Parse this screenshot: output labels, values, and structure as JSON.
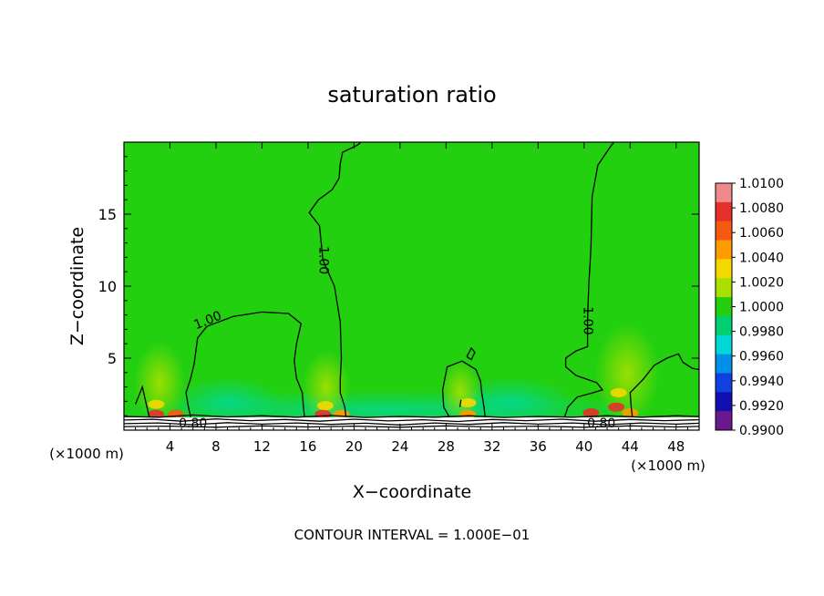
{
  "chart_data": {
    "type": "heatmap",
    "title": "saturation ratio",
    "xlabel": "X−coordinate",
    "ylabel": "Z−coordinate",
    "x_unit_left": "(×1000 m)",
    "x_unit_right": "(×1000 m)",
    "footer": "CONTOUR INTERVAL = 1.000E−01",
    "xlim": [
      0,
      50
    ],
    "ylim": [
      0,
      20
    ],
    "x_ticks": [
      "4",
      "8",
      "12",
      "16",
      "20",
      "24",
      "28",
      "32",
      "36",
      "40",
      "44",
      "48"
    ],
    "x_tick_values": [
      4,
      8,
      12,
      16,
      20,
      24,
      28,
      32,
      36,
      40,
      44,
      48
    ],
    "y_ticks": [
      "5",
      "10",
      "15"
    ],
    "y_tick_values": [
      5,
      10,
      15
    ],
    "colorbar": {
      "labels": [
        "1.0100",
        "1.0080",
        "1.0060",
        "1.0040",
        "1.0020",
        "1.0000",
        "0.9980",
        "0.9960",
        "0.9940",
        "0.9920",
        "0.9900"
      ],
      "colors": [
        "#f08a8a",
        "#e8302a",
        "#f55a10",
        "#ff9a00",
        "#f5d800",
        "#a8e000",
        "#22d010",
        "#00d070",
        "#00d8d8",
        "#0090e8",
        "#1040e0",
        "#1010b0",
        "#6a1890"
      ]
    },
    "contour_labels": [
      {
        "text": "1.00",
        "x": 7.3,
        "z": 7.6,
        "angle": -22
      },
      {
        "text": "1.00",
        "x": 17.3,
        "z": 11.8,
        "angle": 90
      },
      {
        "text": "1.00",
        "x": 40.3,
        "z": 7.6,
        "angle": 90
      },
      {
        "text": "0.80",
        "x": 6.0,
        "z": 0.45,
        "angle": 0
      },
      {
        "text": "0.80",
        "x": 41.5,
        "z": 0.45,
        "angle": 0
      }
    ],
    "contour_lines": [
      {
        "name": "1.00-left",
        "points": [
          [
            1.0,
            1.8
          ],
          [
            1.4,
            2.6
          ],
          [
            1.6,
            3.0
          ],
          [
            2.0,
            1.6
          ],
          [
            2.2,
            0.9
          ]
        ]
      },
      {
        "name": "1.00-lobe-1",
        "points": [
          [
            5.8,
            0.9
          ],
          [
            5.6,
            1.6
          ],
          [
            5.4,
            2.6
          ],
          [
            5.8,
            3.6
          ],
          [
            6.1,
            4.6
          ],
          [
            6.4,
            6.4
          ],
          [
            7.2,
            7.2
          ],
          [
            9.5,
            7.9
          ],
          [
            12.0,
            8.2
          ],
          [
            14.3,
            8.1
          ],
          [
            15.4,
            7.4
          ],
          [
            15.0,
            6.0
          ],
          [
            14.8,
            4.8
          ],
          [
            15.0,
            3.6
          ],
          [
            15.5,
            2.6
          ],
          [
            15.6,
            1.6
          ],
          [
            15.7,
            0.9
          ]
        ]
      },
      {
        "name": "1.00-column-1",
        "points": [
          [
            19.3,
            0.9
          ],
          [
            19.2,
            1.6
          ],
          [
            18.8,
            2.6
          ],
          [
            18.8,
            3.5
          ],
          [
            18.9,
            5.0
          ],
          [
            18.8,
            7.5
          ],
          [
            18.3,
            10.0
          ],
          [
            17.3,
            11.8
          ],
          [
            17.0,
            14.2
          ],
          [
            16.1,
            15.1
          ],
          [
            16.9,
            16.0
          ],
          [
            17.6,
            16.4
          ],
          [
            18.1,
            16.7
          ],
          [
            18.7,
            17.5
          ],
          [
            18.8,
            18.5
          ],
          [
            19.0,
            19.3
          ],
          [
            20.3,
            19.8
          ],
          [
            20.6,
            20.0
          ]
        ]
      },
      {
        "name": "1.00-lobe-2",
        "points": [
          [
            28.3,
            0.9
          ],
          [
            27.8,
            1.6
          ],
          [
            27.7,
            2.8
          ],
          [
            28.1,
            4.4
          ],
          [
            29.4,
            4.8
          ],
          [
            30.6,
            4.2
          ],
          [
            31.0,
            3.4
          ],
          [
            31.1,
            2.6
          ],
          [
            31.3,
            1.6
          ],
          [
            31.4,
            0.9
          ]
        ]
      },
      {
        "name": "1.00-small-loop",
        "points": [
          [
            29.8,
            5.1
          ],
          [
            30.2,
            5.7
          ],
          [
            30.5,
            5.4
          ],
          [
            30.2,
            4.9
          ],
          [
            29.8,
            5.1
          ]
        ]
      },
      {
        "name": "1.00-tick",
        "points": [
          [
            29.2,
            1.6
          ],
          [
            29.3,
            2.1
          ]
        ]
      },
      {
        "name": "1.00-column-2",
        "points": [
          [
            38.3,
            0.9
          ],
          [
            38.6,
            1.6
          ],
          [
            39.4,
            2.3
          ],
          [
            40.8,
            2.6
          ],
          [
            41.6,
            2.8
          ],
          [
            41.1,
            3.3
          ],
          [
            39.3,
            3.8
          ],
          [
            38.4,
            4.4
          ],
          [
            38.4,
            5.0
          ],
          [
            39.3,
            5.5
          ],
          [
            40.3,
            5.8
          ],
          [
            40.3,
            7.6
          ],
          [
            40.4,
            9.9
          ],
          [
            40.6,
            12.8
          ],
          [
            40.7,
            16.2
          ],
          [
            41.2,
            18.4
          ],
          [
            42.3,
            19.7
          ],
          [
            42.6,
            20.0
          ]
        ]
      },
      {
        "name": "1.00-right",
        "points": [
          [
            44.2,
            0.9
          ],
          [
            44.1,
            1.6
          ],
          [
            44.0,
            2.6
          ],
          [
            45.1,
            3.5
          ],
          [
            46.1,
            4.5
          ],
          [
            47.2,
            5.0
          ],
          [
            48.2,
            5.3
          ],
          [
            48.6,
            4.7
          ],
          [
            49.4,
            4.3
          ],
          [
            50.0,
            4.2
          ]
        ]
      },
      {
        "name": "surface-1",
        "points": [
          [
            0.0,
            0.95
          ],
          [
            3.0,
            0.9
          ],
          [
            6.0,
            1.05
          ],
          [
            9.0,
            0.92
          ],
          [
            12.0,
            1.0
          ],
          [
            15.0,
            0.9
          ],
          [
            18.0,
            1.02
          ],
          [
            21.0,
            0.88
          ],
          [
            24.0,
            0.95
          ],
          [
            27.0,
            0.9
          ],
          [
            30.0,
            1.0
          ],
          [
            33.0,
            0.88
          ],
          [
            36.0,
            0.95
          ],
          [
            39.0,
            0.9
          ],
          [
            42.0,
            1.0
          ],
          [
            45.0,
            0.9
          ],
          [
            48.0,
            1.0
          ],
          [
            50.0,
            0.95
          ]
        ]
      },
      {
        "name": "surface-2",
        "points": [
          [
            0.0,
            0.7
          ],
          [
            2.5,
            0.75
          ],
          [
            5.0,
            0.62
          ],
          [
            8.0,
            0.78
          ],
          [
            11.0,
            0.66
          ],
          [
            14.0,
            0.74
          ],
          [
            17.0,
            0.62
          ],
          [
            20.0,
            0.76
          ],
          [
            23.0,
            0.64
          ],
          [
            26.0,
            0.72
          ],
          [
            29.0,
            0.6
          ],
          [
            32.0,
            0.74
          ],
          [
            35.0,
            0.66
          ],
          [
            38.0,
            0.76
          ],
          [
            41.0,
            0.62
          ],
          [
            44.0,
            0.74
          ],
          [
            47.0,
            0.66
          ],
          [
            50.0,
            0.72
          ]
        ]
      },
      {
        "name": "surface-3",
        "points": [
          [
            0.0,
            0.45
          ],
          [
            3.0,
            0.5
          ],
          [
            6.0,
            0.38
          ],
          [
            9.0,
            0.52
          ],
          [
            12.0,
            0.42
          ],
          [
            15.0,
            0.5
          ],
          [
            18.0,
            0.4
          ],
          [
            21.0,
            0.48
          ],
          [
            24.0,
            0.36
          ],
          [
            27.0,
            0.5
          ],
          [
            30.0,
            0.4
          ],
          [
            33.0,
            0.52
          ],
          [
            36.0,
            0.42
          ],
          [
            39.0,
            0.5
          ],
          [
            42.0,
            0.38
          ],
          [
            45.0,
            0.5
          ],
          [
            48.0,
            0.42
          ],
          [
            50.0,
            0.48
          ]
        ]
      },
      {
        "name": "surface-4",
        "points": [
          [
            0.0,
            0.25
          ],
          [
            4.0,
            0.28
          ],
          [
            8.0,
            0.2
          ],
          [
            12.0,
            0.3
          ],
          [
            16.0,
            0.22
          ],
          [
            20.0,
            0.28
          ],
          [
            24.0,
            0.2
          ],
          [
            28.0,
            0.3
          ],
          [
            32.0,
            0.22
          ],
          [
            36.0,
            0.28
          ],
          [
            40.0,
            0.2
          ],
          [
            44.0,
            0.3
          ],
          [
            48.0,
            0.22
          ],
          [
            50.0,
            0.26
          ]
        ]
      }
    ],
    "hotspots": [
      {
        "x": 2.8,
        "z": 1.1,
        "value": 1.006
      },
      {
        "x": 2.8,
        "z": 1.8,
        "value": 1.003
      },
      {
        "x": 4.5,
        "z": 1.1,
        "value": 1.005
      },
      {
        "x": 17.3,
        "z": 1.1,
        "value": 1.006
      },
      {
        "x": 17.5,
        "z": 1.7,
        "value": 1.003
      },
      {
        "x": 18.9,
        "z": 1.1,
        "value": 1.004
      },
      {
        "x": 29.9,
        "z": 1.1,
        "value": 1.004
      },
      {
        "x": 29.9,
        "z": 1.9,
        "value": 1.002
      },
      {
        "x": 40.6,
        "z": 1.2,
        "value": 1.007
      },
      {
        "x": 42.8,
        "z": 1.6,
        "value": 1.006
      },
      {
        "x": 43.0,
        "z": 2.6,
        "value": 1.003
      },
      {
        "x": 44.0,
        "z": 1.2,
        "value": 1.004
      }
    ]
  }
}
